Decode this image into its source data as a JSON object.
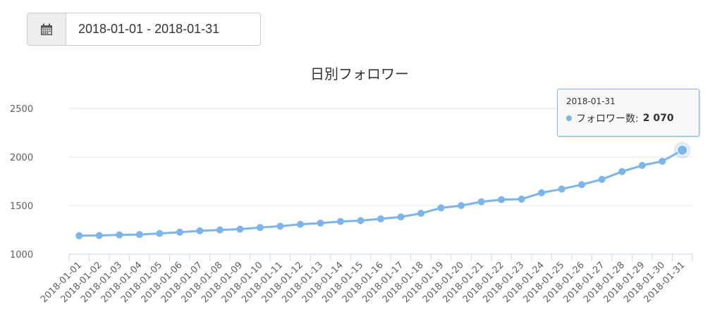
{
  "date_range": {
    "value": "2018-01-01 - 2018-01-31",
    "icon": "calendar-icon"
  },
  "tooltip": {
    "date": "2018-01-31",
    "series_label": "フォロワー数:",
    "value": "2 070"
  },
  "chart_data": {
    "type": "line",
    "title": "日別フォロワー",
    "xlabel": "",
    "ylabel": "",
    "ylim": [
      1000,
      2500
    ],
    "yticks": [
      1000,
      1500,
      2000,
      2500
    ],
    "grid": true,
    "color": "#7cb5ec",
    "categories": [
      "2018-01-01",
      "2018-01-02",
      "2018-01-03",
      "2018-01-04",
      "2018-01-05",
      "2018-01-06",
      "2018-01-07",
      "2018-01-08",
      "2018-01-09",
      "2018-01-10",
      "2018-01-11",
      "2018-01-12",
      "2018-01-13",
      "2018-01-14",
      "2018-01-15",
      "2018-01-16",
      "2018-01-17",
      "2018-01-18",
      "2018-01-19",
      "2018-01-20",
      "2018-01-21",
      "2018-01-22",
      "2018-01-23",
      "2018-01-24",
      "2018-01-25",
      "2018-01-26",
      "2018-01-27",
      "2018-01-28",
      "2018-01-29",
      "2018-01-30",
      "2018-01-31"
    ],
    "series": [
      {
        "name": "フォロワー数",
        "values": [
          1190,
          1192,
          1198,
          1202,
          1213,
          1226,
          1240,
          1249,
          1257,
          1274,
          1288,
          1307,
          1320,
          1336,
          1345,
          1363,
          1383,
          1420,
          1476,
          1500,
          1539,
          1561,
          1566,
          1632,
          1670,
          1716,
          1770,
          1850,
          1913,
          1956,
          2070
        ]
      }
    ]
  }
}
